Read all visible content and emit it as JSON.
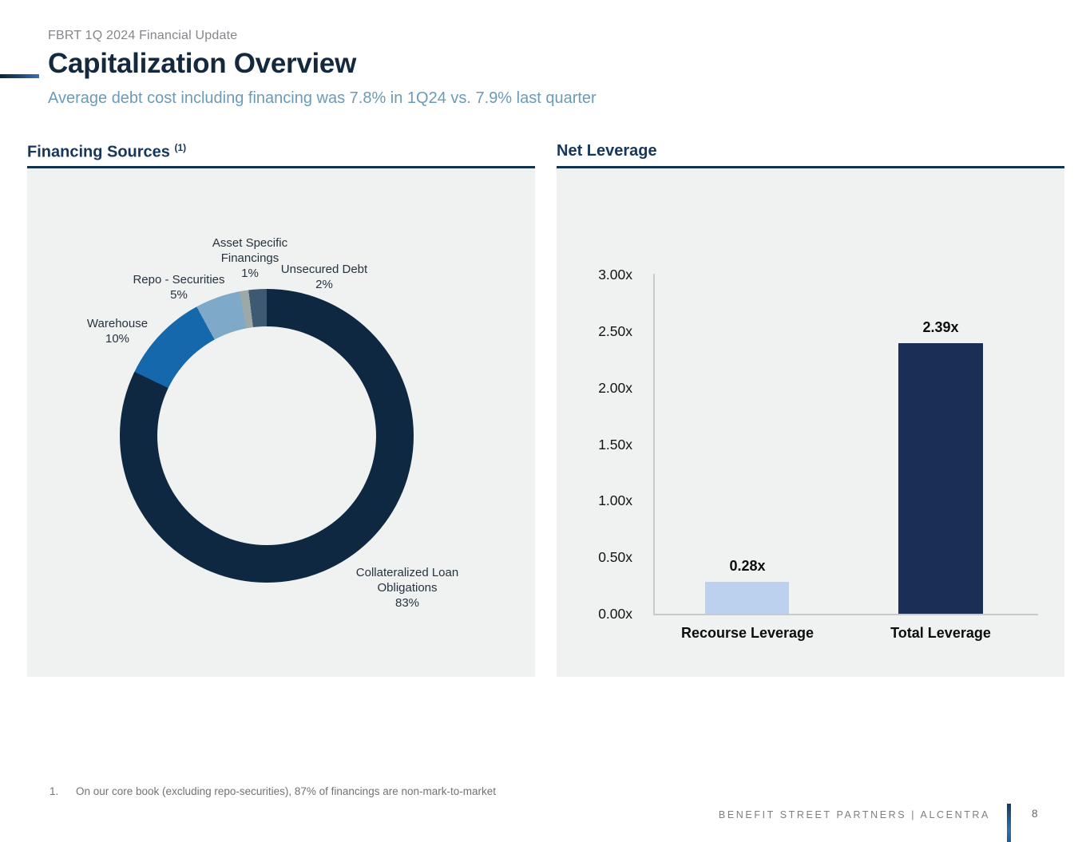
{
  "page": {
    "eyebrow": "FBRT 1Q 2024 Financial Update",
    "title": "Capitalization Overview",
    "subtitle": "Average debt cost including financing was 7.8% in 1Q24 vs. 7.9% last quarter",
    "footnote_number": "1.",
    "footnote_text": "On our core book (excluding repo-securities), 87% of financings are non-mark-to-market",
    "footer_brand": "BENEFIT STREET PARTNERS | ALCENTRA",
    "page_number": "8"
  },
  "financing_section": {
    "title": "Financing Sources",
    "footnote_ref": "(1)"
  },
  "leverage_section": {
    "title": "Net Leverage"
  },
  "chart_data": [
    {
      "type": "pie",
      "subtype": "donut",
      "title": "Financing Sources",
      "labels": [
        "Collateralized Loan Obligations",
        "Warehouse",
        "Repo - Securities",
        "Asset Specific Financings",
        "Unsecured Debt"
      ],
      "values": [
        83,
        10,
        5,
        1,
        2
      ],
      "unit": "%",
      "colors": [
        "#0d2840",
        "#1568ac",
        "#7fa9c9",
        "#9da8a8",
        "#3d5a72"
      ],
      "start_angle_deg": 0,
      "direction": "clockwise",
      "hole_ratio": 0.745,
      "legend_position": "none",
      "callouts": [
        {
          "id": "clo",
          "lines": [
            "Collateralized Loan",
            "Obligations",
            "83%"
          ]
        },
        {
          "id": "warehouse",
          "lines": [
            "Warehouse",
            "10%"
          ]
        },
        {
          "id": "repo",
          "lines": [
            "Repo - Securities",
            "5%"
          ]
        },
        {
          "id": "asset",
          "lines": [
            "Asset Specific",
            "Financings",
            "1%"
          ]
        },
        {
          "id": "unsecured",
          "lines": [
            "Unsecured Debt",
            "2%"
          ]
        }
      ]
    },
    {
      "type": "bar",
      "title": "Net Leverage",
      "categories": [
        "Recourse Leverage",
        "Total Leverage"
      ],
      "values": [
        0.28,
        2.39
      ],
      "data_labels": [
        "0.28x",
        "2.39x"
      ],
      "bar_colors": [
        "#bcd1ee",
        "#1a2f55"
      ],
      "ylim": [
        0,
        3
      ],
      "ytick_labels": [
        "0.00x",
        "0.50x",
        "1.00x",
        "1.50x",
        "2.00x",
        "2.50x",
        "3.00x"
      ],
      "grid": false,
      "legend_position": "none"
    }
  ],
  "colors": {
    "accent_navy": "#14293e",
    "accent_blue": "#2f71a9",
    "panel_bg": "#f0f1f1",
    "header_underline": "#123349",
    "subtitle_blue": "#6d9ab5"
  }
}
